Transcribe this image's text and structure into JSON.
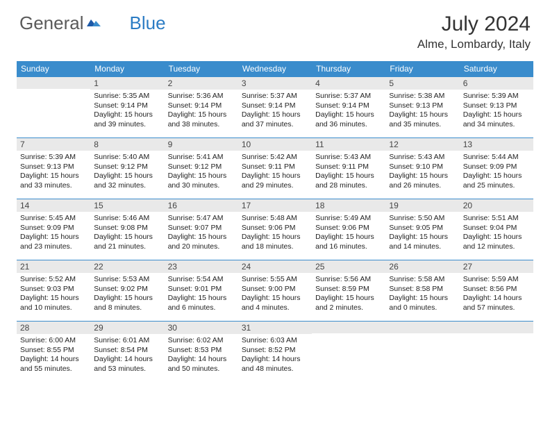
{
  "logo": {
    "part1": "General",
    "part2": "Blue"
  },
  "title": "July 2024",
  "location": "Alme, Lombardy, Italy",
  "colors": {
    "header_bg": "#3a8ccc",
    "header_text": "#ffffff",
    "daynum_bg": "#e9e9e9",
    "border": "#3a8ccc",
    "logo_gray": "#5a5a5a",
    "logo_blue": "#2b7cc4"
  },
  "fonts": {
    "title_size": 30,
    "location_size": 17,
    "dayhead_size": 12,
    "daynum_size": 12,
    "body_size": 10.5
  },
  "day_headers": [
    "Sunday",
    "Monday",
    "Tuesday",
    "Wednesday",
    "Thursday",
    "Friday",
    "Saturday"
  ],
  "weeks": [
    [
      {
        "num": "",
        "sunrise": "",
        "sunset": "",
        "daylight": ""
      },
      {
        "num": "1",
        "sunrise": "Sunrise: 5:35 AM",
        "sunset": "Sunset: 9:14 PM",
        "daylight": "Daylight: 15 hours and 39 minutes."
      },
      {
        "num": "2",
        "sunrise": "Sunrise: 5:36 AM",
        "sunset": "Sunset: 9:14 PM",
        "daylight": "Daylight: 15 hours and 38 minutes."
      },
      {
        "num": "3",
        "sunrise": "Sunrise: 5:37 AM",
        "sunset": "Sunset: 9:14 PM",
        "daylight": "Daylight: 15 hours and 37 minutes."
      },
      {
        "num": "4",
        "sunrise": "Sunrise: 5:37 AM",
        "sunset": "Sunset: 9:14 PM",
        "daylight": "Daylight: 15 hours and 36 minutes."
      },
      {
        "num": "5",
        "sunrise": "Sunrise: 5:38 AM",
        "sunset": "Sunset: 9:13 PM",
        "daylight": "Daylight: 15 hours and 35 minutes."
      },
      {
        "num": "6",
        "sunrise": "Sunrise: 5:39 AM",
        "sunset": "Sunset: 9:13 PM",
        "daylight": "Daylight: 15 hours and 34 minutes."
      }
    ],
    [
      {
        "num": "7",
        "sunrise": "Sunrise: 5:39 AM",
        "sunset": "Sunset: 9:13 PM",
        "daylight": "Daylight: 15 hours and 33 minutes."
      },
      {
        "num": "8",
        "sunrise": "Sunrise: 5:40 AM",
        "sunset": "Sunset: 9:12 PM",
        "daylight": "Daylight: 15 hours and 32 minutes."
      },
      {
        "num": "9",
        "sunrise": "Sunrise: 5:41 AM",
        "sunset": "Sunset: 9:12 PM",
        "daylight": "Daylight: 15 hours and 30 minutes."
      },
      {
        "num": "10",
        "sunrise": "Sunrise: 5:42 AM",
        "sunset": "Sunset: 9:11 PM",
        "daylight": "Daylight: 15 hours and 29 minutes."
      },
      {
        "num": "11",
        "sunrise": "Sunrise: 5:43 AM",
        "sunset": "Sunset: 9:11 PM",
        "daylight": "Daylight: 15 hours and 28 minutes."
      },
      {
        "num": "12",
        "sunrise": "Sunrise: 5:43 AM",
        "sunset": "Sunset: 9:10 PM",
        "daylight": "Daylight: 15 hours and 26 minutes."
      },
      {
        "num": "13",
        "sunrise": "Sunrise: 5:44 AM",
        "sunset": "Sunset: 9:09 PM",
        "daylight": "Daylight: 15 hours and 25 minutes."
      }
    ],
    [
      {
        "num": "14",
        "sunrise": "Sunrise: 5:45 AM",
        "sunset": "Sunset: 9:09 PM",
        "daylight": "Daylight: 15 hours and 23 minutes."
      },
      {
        "num": "15",
        "sunrise": "Sunrise: 5:46 AM",
        "sunset": "Sunset: 9:08 PM",
        "daylight": "Daylight: 15 hours and 21 minutes."
      },
      {
        "num": "16",
        "sunrise": "Sunrise: 5:47 AM",
        "sunset": "Sunset: 9:07 PM",
        "daylight": "Daylight: 15 hours and 20 minutes."
      },
      {
        "num": "17",
        "sunrise": "Sunrise: 5:48 AM",
        "sunset": "Sunset: 9:06 PM",
        "daylight": "Daylight: 15 hours and 18 minutes."
      },
      {
        "num": "18",
        "sunrise": "Sunrise: 5:49 AM",
        "sunset": "Sunset: 9:06 PM",
        "daylight": "Daylight: 15 hours and 16 minutes."
      },
      {
        "num": "19",
        "sunrise": "Sunrise: 5:50 AM",
        "sunset": "Sunset: 9:05 PM",
        "daylight": "Daylight: 15 hours and 14 minutes."
      },
      {
        "num": "20",
        "sunrise": "Sunrise: 5:51 AM",
        "sunset": "Sunset: 9:04 PM",
        "daylight": "Daylight: 15 hours and 12 minutes."
      }
    ],
    [
      {
        "num": "21",
        "sunrise": "Sunrise: 5:52 AM",
        "sunset": "Sunset: 9:03 PM",
        "daylight": "Daylight: 15 hours and 10 minutes."
      },
      {
        "num": "22",
        "sunrise": "Sunrise: 5:53 AM",
        "sunset": "Sunset: 9:02 PM",
        "daylight": "Daylight: 15 hours and 8 minutes."
      },
      {
        "num": "23",
        "sunrise": "Sunrise: 5:54 AM",
        "sunset": "Sunset: 9:01 PM",
        "daylight": "Daylight: 15 hours and 6 minutes."
      },
      {
        "num": "24",
        "sunrise": "Sunrise: 5:55 AM",
        "sunset": "Sunset: 9:00 PM",
        "daylight": "Daylight: 15 hours and 4 minutes."
      },
      {
        "num": "25",
        "sunrise": "Sunrise: 5:56 AM",
        "sunset": "Sunset: 8:59 PM",
        "daylight": "Daylight: 15 hours and 2 minutes."
      },
      {
        "num": "26",
        "sunrise": "Sunrise: 5:58 AM",
        "sunset": "Sunset: 8:58 PM",
        "daylight": "Daylight: 15 hours and 0 minutes."
      },
      {
        "num": "27",
        "sunrise": "Sunrise: 5:59 AM",
        "sunset": "Sunset: 8:56 PM",
        "daylight": "Daylight: 14 hours and 57 minutes."
      }
    ],
    [
      {
        "num": "28",
        "sunrise": "Sunrise: 6:00 AM",
        "sunset": "Sunset: 8:55 PM",
        "daylight": "Daylight: 14 hours and 55 minutes."
      },
      {
        "num": "29",
        "sunrise": "Sunrise: 6:01 AM",
        "sunset": "Sunset: 8:54 PM",
        "daylight": "Daylight: 14 hours and 53 minutes."
      },
      {
        "num": "30",
        "sunrise": "Sunrise: 6:02 AM",
        "sunset": "Sunset: 8:53 PM",
        "daylight": "Daylight: 14 hours and 50 minutes."
      },
      {
        "num": "31",
        "sunrise": "Sunrise: 6:03 AM",
        "sunset": "Sunset: 8:52 PM",
        "daylight": "Daylight: 14 hours and 48 minutes."
      },
      {
        "num": "",
        "sunrise": "",
        "sunset": "",
        "daylight": ""
      },
      {
        "num": "",
        "sunrise": "",
        "sunset": "",
        "daylight": ""
      },
      {
        "num": "",
        "sunrise": "",
        "sunset": "",
        "daylight": ""
      }
    ]
  ]
}
